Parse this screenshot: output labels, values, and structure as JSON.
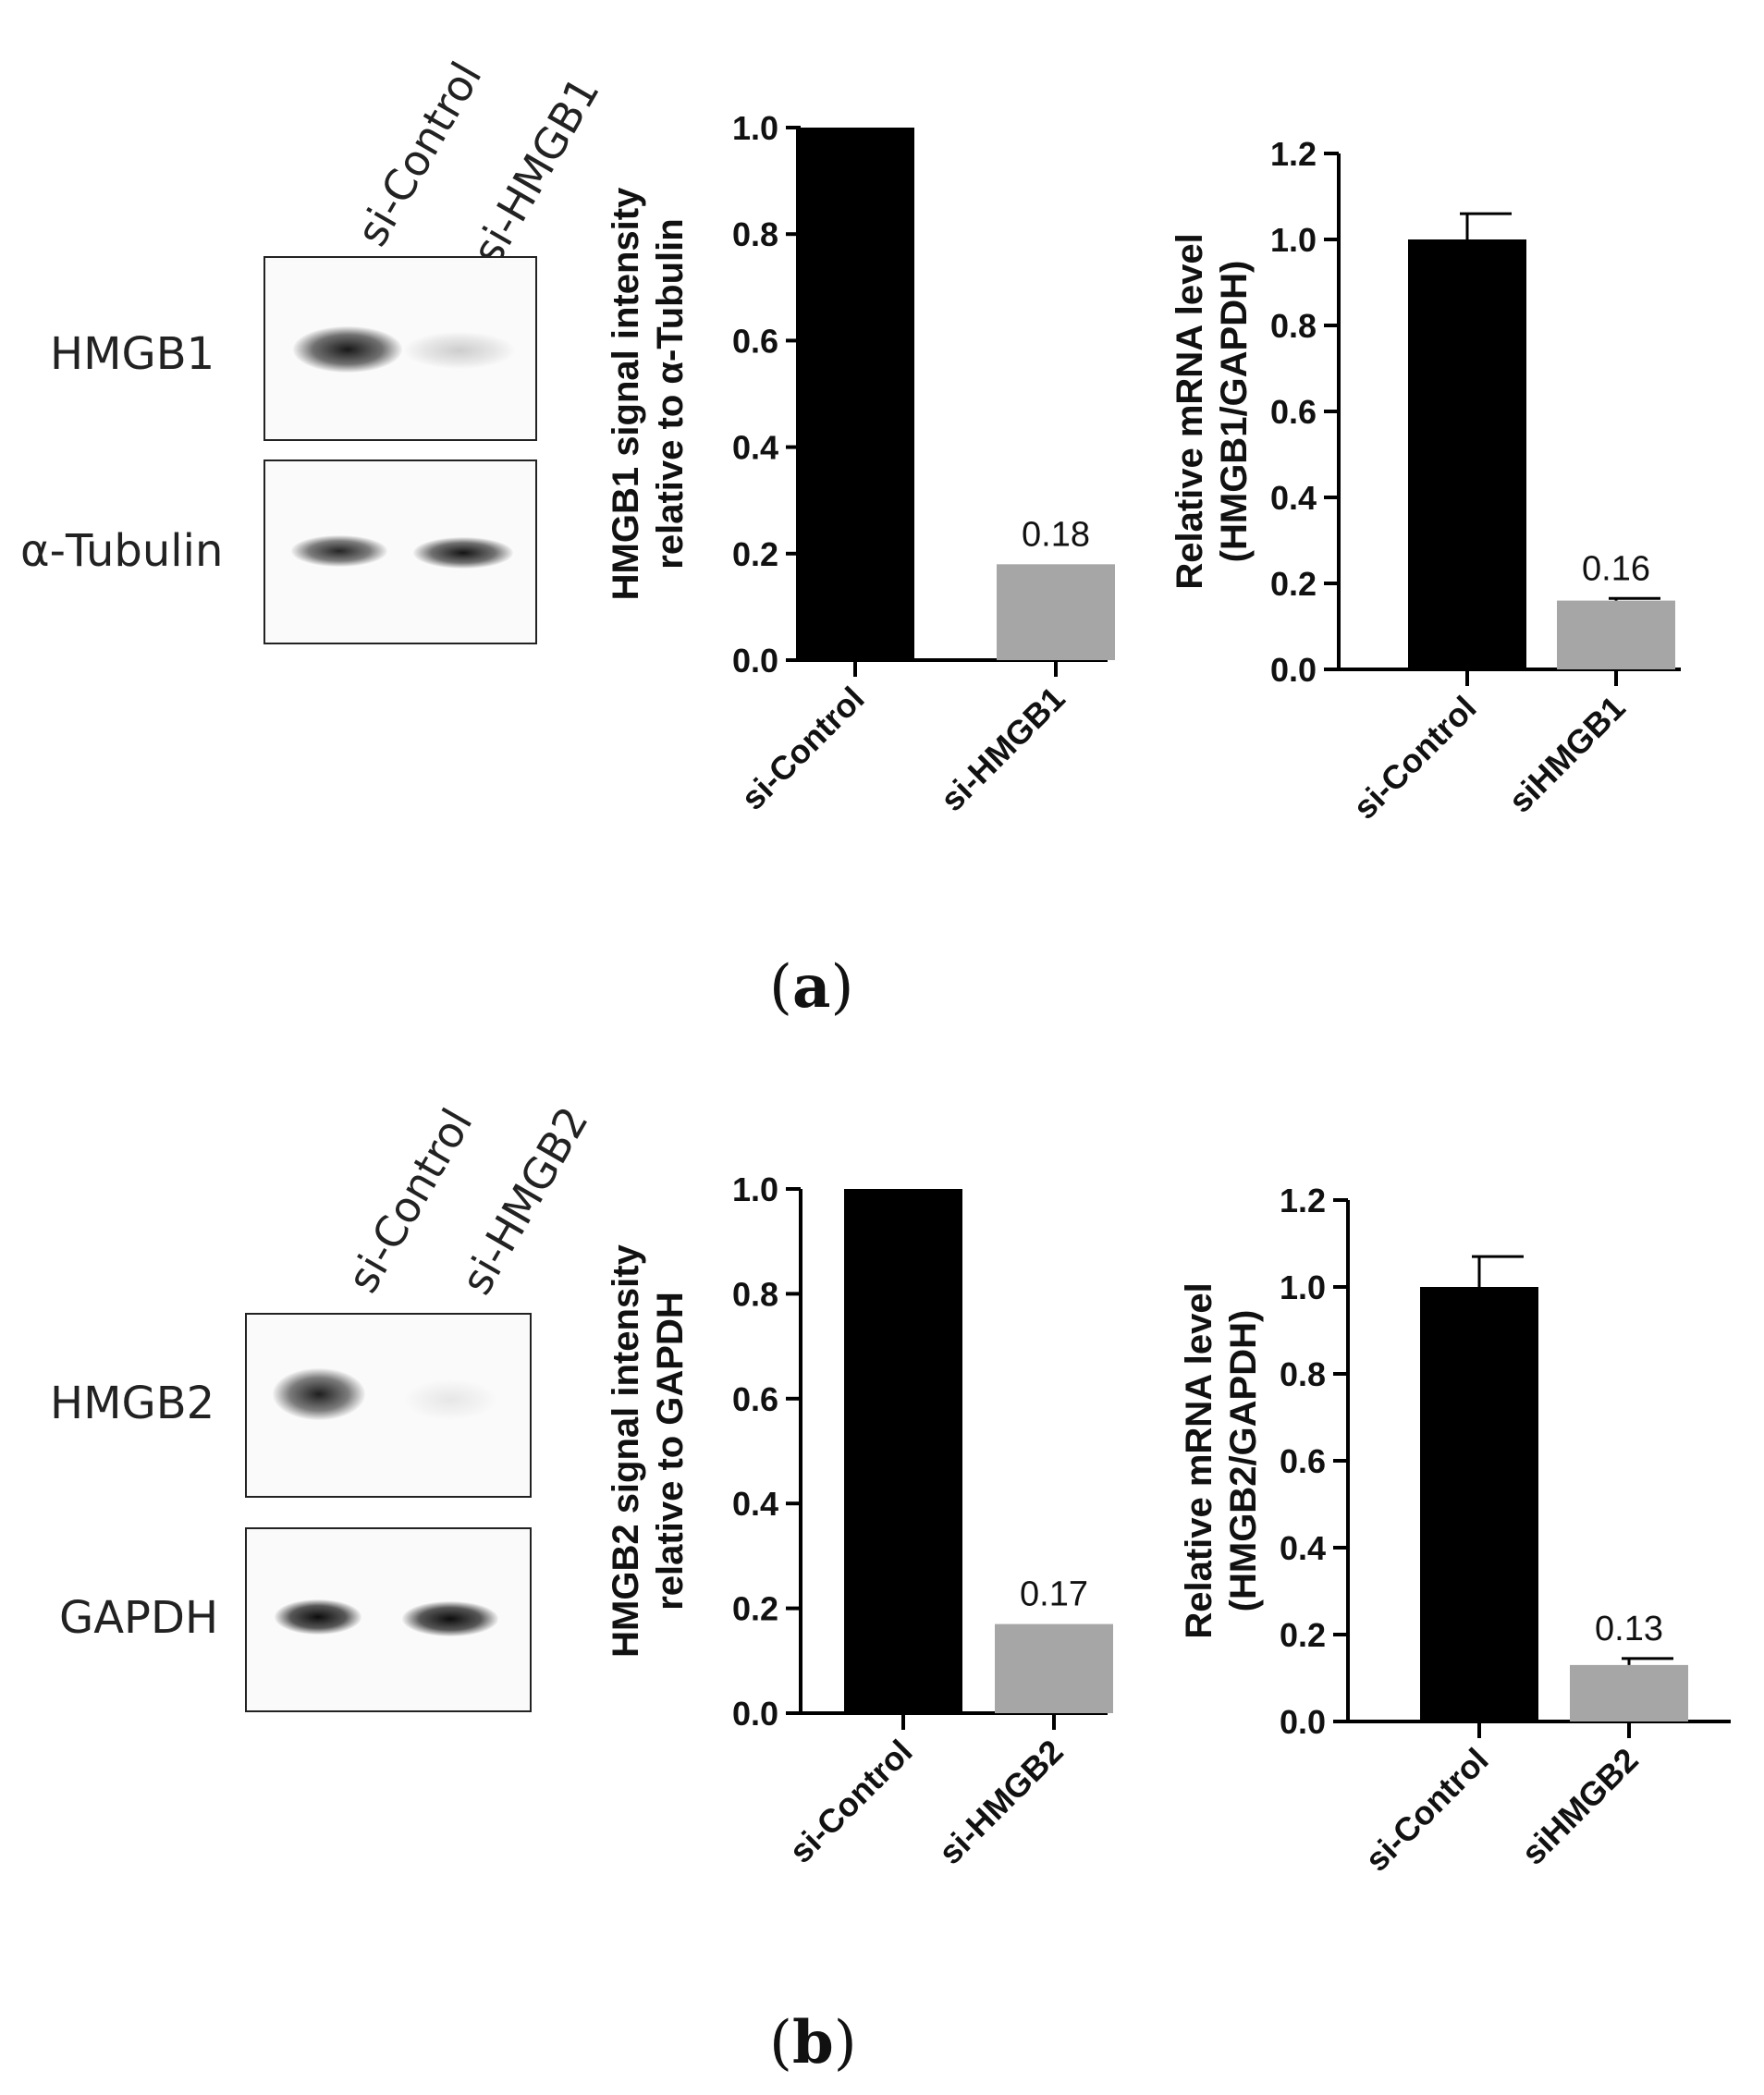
{
  "panels": [
    {
      "letter": "a",
      "blot": {
        "lanes": [
          "si-Control",
          "si-HMGB1"
        ],
        "rows": [
          {
            "label": "HMGB1",
            "intensities": [
              0.9,
              0.15
            ]
          },
          {
            "label": "α-Tubulin",
            "intensities": [
              0.85,
              0.9
            ]
          }
        ]
      }
    },
    {
      "letter": "b",
      "blot": {
        "lanes": [
          "si-Control",
          "si-HMGB2"
        ],
        "rows": [
          {
            "label": "HMGB2",
            "intensities": [
              0.85,
              0.08
            ]
          },
          {
            "label": "GAPDH",
            "intensities": [
              0.95,
              0.95
            ]
          }
        ]
      }
    }
  ],
  "chart_data": [
    {
      "type": "bar",
      "categories": [
        "si-Control",
        "si-HMGB1"
      ],
      "values": [
        1.0,
        0.18
      ],
      "errors": [
        null,
        null
      ],
      "data_labels": [
        "",
        "0.18"
      ],
      "colors": [
        "#000000",
        "#a6a6a6"
      ],
      "ylabel_lines": [
        "HMGB1 signal intensity",
        "relative to α-Tubulin"
      ],
      "ylim": [
        0,
        1.0
      ],
      "yticks": [
        "0.0",
        "0.2",
        "0.4",
        "0.6",
        "0.8",
        "1.0"
      ]
    },
    {
      "type": "bar",
      "categories": [
        "si-Control",
        "siHMGB1"
      ],
      "values": [
        1.0,
        0.16
      ],
      "errors": [
        0.06,
        0.005
      ],
      "data_labels": [
        "",
        "0.16"
      ],
      "colors": [
        "#000000",
        "#a6a6a6"
      ],
      "ylabel_lines": [
        "Relative mRNA level",
        "(HMGB1/GAPDH)"
      ],
      "ylim": [
        0,
        1.2
      ],
      "yticks": [
        "0.0",
        "0.2",
        "0.4",
        "0.6",
        "0.8",
        "1.0",
        "1.2"
      ]
    },
    {
      "type": "bar",
      "categories": [
        "si-Control",
        "si-HMGB2"
      ],
      "values": [
        1.0,
        0.17
      ],
      "errors": [
        null,
        null
      ],
      "data_labels": [
        "",
        "0.17"
      ],
      "colors": [
        "#000000",
        "#a6a6a6"
      ],
      "ylabel_lines": [
        "HMGB2 signal intensity",
        "relative to GAPDH"
      ],
      "ylim": [
        0,
        1.0
      ],
      "yticks": [
        "0.0",
        "0.2",
        "0.4",
        "0.6",
        "0.8",
        "1.0"
      ]
    },
    {
      "type": "bar",
      "categories": [
        "si-Control",
        "siHMGB2"
      ],
      "values": [
        1.0,
        0.13
      ],
      "errors": [
        0.07,
        0.015
      ],
      "data_labels": [
        "",
        "0.13"
      ],
      "colors": [
        "#000000",
        "#a6a6a6"
      ],
      "ylabel_lines": [
        "Relative mRNA level",
        "(HMGB2/GAPDH)"
      ],
      "ylim": [
        0,
        1.2
      ],
      "yticks": [
        "0.0",
        "0.2",
        "0.4",
        "0.6",
        "0.8",
        "1.0",
        "1.2"
      ]
    }
  ]
}
